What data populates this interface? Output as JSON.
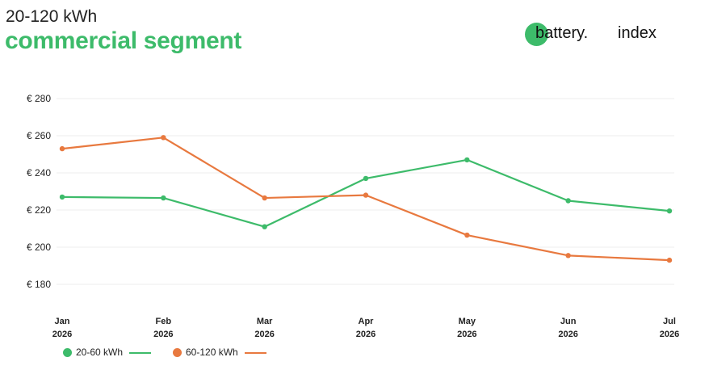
{
  "header": {
    "subtitle": "20-120 kWh",
    "title": "commercial segment"
  },
  "logo": {
    "word": "battery.",
    "index": "index",
    "dot_color": "#3dbb6a"
  },
  "colors": {
    "green": "#3dbb6a",
    "orange": "#e8793f",
    "grid": "#ececec"
  },
  "chart_data": {
    "type": "line",
    "categories": [
      "Jan",
      "Feb",
      "Mar",
      "Apr",
      "May",
      "Jun",
      "Jul"
    ],
    "category_years": [
      "2026",
      "2026",
      "2026",
      "2026",
      "2026",
      "2026",
      "2026"
    ],
    "y_ticks": [
      180,
      200,
      220,
      240,
      260,
      280
    ],
    "y_tick_labels": [
      "€ 180",
      "€ 200",
      "€ 220",
      "€ 240",
      "€ 260",
      "€ 280"
    ],
    "ylim": [
      180,
      280
    ],
    "grid": true,
    "legend_position": "bottom-left",
    "series": [
      {
        "name": "20-60 kWh",
        "color": "#3dbb6a",
        "values": [
          227,
          226.5,
          211,
          237,
          247,
          225,
          219.5
        ]
      },
      {
        "name": "60-120 kWh",
        "color": "#e8793f",
        "values": [
          253,
          259,
          226.5,
          228,
          206.5,
          195.5,
          193
        ]
      }
    ]
  }
}
